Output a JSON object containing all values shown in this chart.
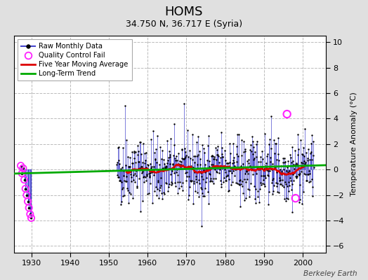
{
  "title": "HOMS",
  "subtitle": "34.750 N, 36.717 E (Syria)",
  "ylabel": "Temperature Anomaly (°C)",
  "watermark": "Berkeley Earth",
  "ylim": [
    -6.5,
    10.5
  ],
  "xlim": [
    1925.5,
    2006
  ],
  "xticks": [
    1930,
    1940,
    1950,
    1960,
    1970,
    1980,
    1990,
    2000
  ],
  "yticks": [
    -6,
    -4,
    -2,
    0,
    2,
    4,
    6,
    8,
    10
  ],
  "bg_color": "#e0e0e0",
  "plot_bg_color": "#ffffff",
  "raw_line_color": "#4444cc",
  "raw_dot_color": "#000000",
  "ma_color": "#dd0000",
  "trend_color": "#00aa00",
  "qc_fail_color": "#ff22ff",
  "title_fontsize": 13,
  "subtitle_fontsize": 9,
  "seed": 42
}
